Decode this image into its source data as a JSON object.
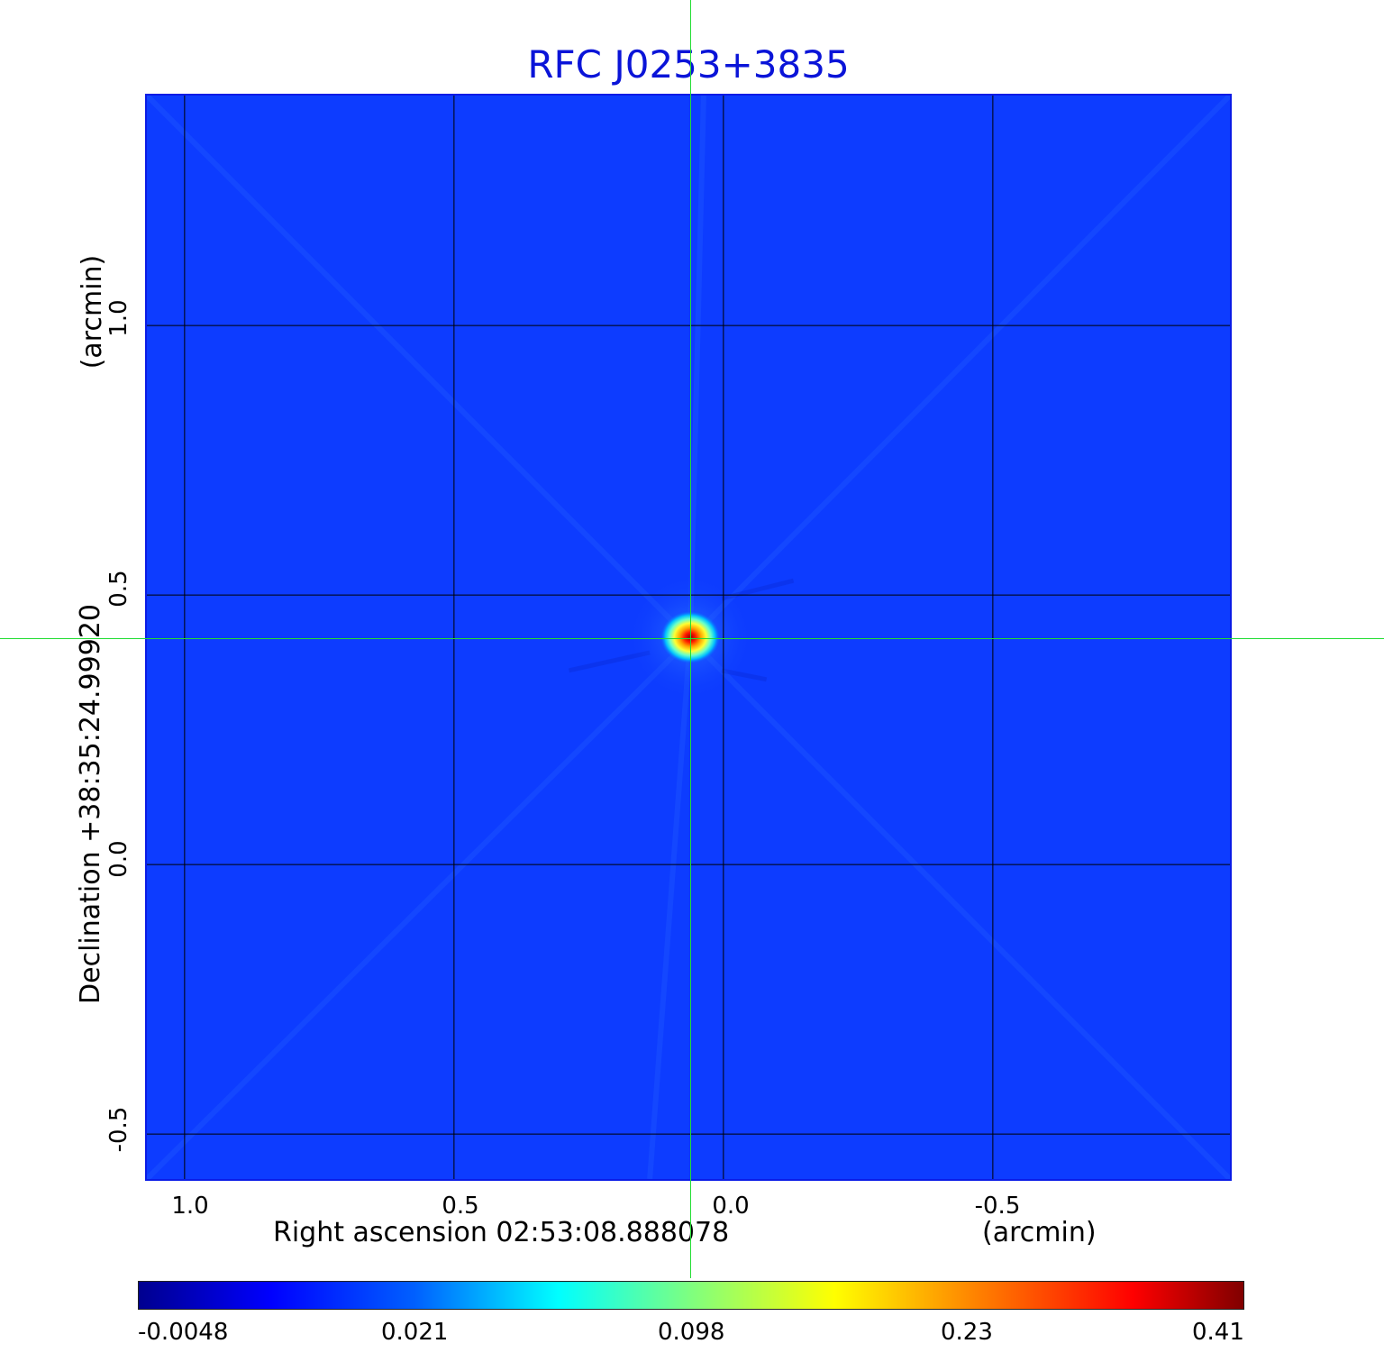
{
  "title": "RFC J0253+3835",
  "x_axis": {
    "label": "Right ascension  02:53:08.888078",
    "unit": "(arcmin)",
    "ticks": [
      "1.0",
      "0.5",
      "0.0",
      "-0.5"
    ]
  },
  "y_axis": {
    "label": "Declination  +38:35:24.99920",
    "unit": "(arcmin)",
    "ticks": [
      "1.0",
      "0.5",
      "0.0",
      "-0.5"
    ]
  },
  "colorbar": {
    "labels": [
      "-0.0048",
      "0.021",
      "0.098",
      "0.23",
      "0.41"
    ]
  },
  "colors": {
    "title": "#0a14d8",
    "background_map": "#0d3cff",
    "crosshair": "#22dd33",
    "grid": "#000000"
  }
}
